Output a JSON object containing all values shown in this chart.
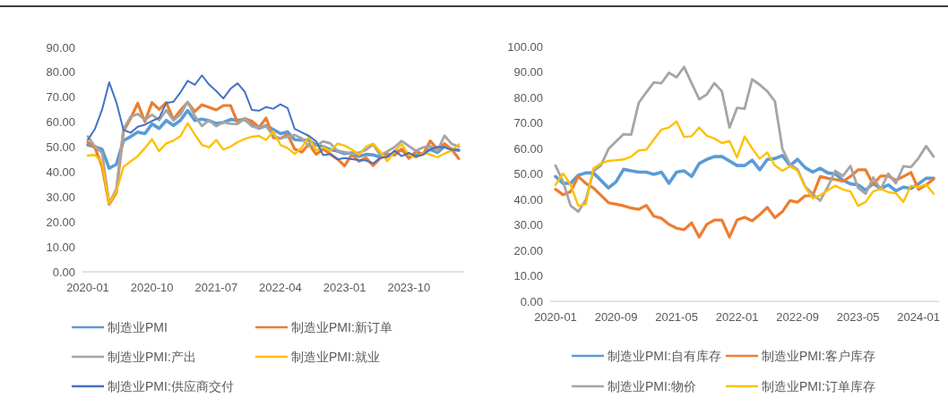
{
  "chart_data": [
    {
      "type": "line",
      "legend": "bottom",
      "grid": false,
      "categories": [
        "2020-01",
        null,
        null,
        null,
        null,
        null,
        null,
        null,
        null,
        "2020-10",
        null,
        null,
        null,
        null,
        null,
        null,
        null,
        null,
        "2021-07",
        null,
        null,
        null,
        null,
        null,
        null,
        null,
        null,
        "2022-04",
        null,
        null,
        null,
        null,
        null,
        null,
        null,
        null,
        "2023-01",
        null,
        null,
        null,
        null,
        null,
        null,
        null,
        null,
        "2023-10",
        null,
        null,
        null,
        null,
        null,
        null,
        null
      ],
      "ylim": [
        0,
        90
      ],
      "yticks": [
        {
          "value": 0,
          "label": "0.00"
        },
        {
          "value": 10,
          "label": "10.00"
        },
        {
          "value": 20,
          "label": "20.00"
        },
        {
          "value": 30,
          "label": "30.00"
        },
        {
          "value": 40,
          "label": "40.00"
        },
        {
          "value": 50,
          "label": "50.00"
        },
        {
          "value": 60,
          "label": "60.00"
        },
        {
          "value": 70,
          "label": "70.00"
        },
        {
          "value": 80,
          "label": "80.00"
        },
        {
          "value": 90,
          "label": "90.00"
        }
      ],
      "series": [
        {
          "name": "制造业PMI",
          "color": "#5b9bd5",
          "values": [
            50.9,
            50.1,
            49.1,
            41.5,
            43.1,
            52.6,
            54.2,
            56.0,
            55.4,
            59.3,
            57.5,
            60.7,
            58.7,
            60.8,
            64.7,
            60.7,
            61.2,
            60.6,
            59.5,
            59.9,
            61.1,
            60.8,
            61.1,
            58.8,
            57.6,
            58.6,
            57.1,
            55.4,
            56.1,
            53.0,
            52.8,
            52.8,
            50.9,
            50.2,
            49.0,
            48.4,
            47.4,
            47.7,
            46.3,
            47.1,
            46.9,
            46.0,
            46.4,
            47.6,
            49.0,
            46.7,
            46.7,
            47.4,
            49.1,
            47.8,
            50.3,
            49.2,
            48.7
          ]
        },
        {
          "name": "制造业PMI:新订单",
          "color": "#ed7d31",
          "values": [
            52.0,
            49.8,
            42.2,
            27.1,
            31.8,
            56.4,
            61.5,
            67.6,
            60.2,
            67.9,
            65.1,
            67.9,
            61.1,
            64.8,
            68.0,
            64.3,
            67.0,
            66.0,
            64.9,
            66.7,
            66.7,
            59.8,
            61.5,
            60.4,
            57.9,
            61.7,
            53.8,
            53.5,
            55.1,
            49.2,
            48.0,
            51.3,
            47.1,
            49.2,
            47.2,
            45.2,
            42.5,
            47.0,
            44.3,
            45.7,
            42.6,
            45.6,
            47.3,
            46.8,
            49.2,
            45.5,
            48.3,
            47.1,
            52.5,
            49.2,
            51.4,
            49.1,
            45.4
          ]
        },
        {
          "name": "制造业PMI:产出",
          "color": "#a5a5a5",
          "values": [
            54.3,
            50.3,
            47.7,
            27.5,
            33.2,
            57.3,
            62.1,
            63.3,
            61.0,
            63.0,
            60.8,
            64.8,
            60.7,
            63.2,
            68.1,
            62.5,
            58.5,
            60.8,
            58.4,
            60.0,
            59.4,
            59.3,
            61.5,
            58.3,
            57.8,
            58.5,
            54.5,
            53.6,
            54.2,
            54.9,
            53.5,
            50.4,
            50.6,
            52.3,
            51.5,
            48.5,
            48.0,
            47.3,
            47.8,
            48.9,
            51.1,
            46.7,
            48.3,
            50.0,
            52.5,
            50.4,
            48.5,
            49.9,
            50.4,
            48.4,
            54.6,
            51.3,
            50.2
          ]
        },
        {
          "name": "制造业PMI:就业",
          "color": "#ffc000",
          "values": [
            46.6,
            46.9,
            43.8,
            27.5,
            32.1,
            42.1,
            44.3,
            46.4,
            49.6,
            53.2,
            48.4,
            51.5,
            52.6,
            54.4,
            59.6,
            55.1,
            50.9,
            49.9,
            52.9,
            49.0,
            50.2,
            52.0,
            53.3,
            54.2,
            54.5,
            52.9,
            56.3,
            50.9,
            49.6,
            47.3,
            49.9,
            54.2,
            48.7,
            50.0,
            48.4,
            51.4,
            50.6,
            49.1,
            46.9,
            50.2,
            51.4,
            48.1,
            44.4,
            48.5,
            51.2,
            46.8,
            45.8,
            47.5,
            47.1,
            45.9,
            47.4,
            48.6,
            51.1
          ]
        },
        {
          "name": "制造业PMI:供应商交付",
          "color": "#4472c4",
          "values": [
            52.9,
            57.3,
            65.0,
            76.0,
            68.0,
            56.9,
            55.8,
            58.2,
            59.0,
            60.5,
            61.7,
            67.7,
            68.2,
            72.0,
            76.6,
            75.0,
            78.8,
            75.1,
            72.5,
            69.5,
            73.4,
            75.6,
            72.2,
            64.9,
            64.6,
            66.1,
            65.4,
            67.2,
            65.7,
            57.3,
            55.9,
            54.5,
            52.4,
            46.8,
            47.2,
            45.1,
            45.6,
            45.2,
            44.8,
            44.6,
            43.5,
            45.7,
            46.1,
            48.6,
            46.4,
            47.7,
            46.2,
            47.0,
            49.1,
            50.1,
            49.9,
            48.9,
            48.9
          ]
        }
      ]
    },
    {
      "type": "line",
      "legend": "bottom",
      "grid": false,
      "categories": [
        "2020-01",
        null,
        null,
        null,
        null,
        null,
        null,
        null,
        "2020-09",
        null,
        null,
        null,
        null,
        null,
        null,
        null,
        "2021-05",
        null,
        null,
        null,
        null,
        null,
        null,
        null,
        "2022-01",
        null,
        null,
        null,
        null,
        null,
        null,
        null,
        "2022-09",
        null,
        null,
        null,
        null,
        null,
        null,
        null,
        "2023-05",
        null,
        null,
        null,
        null,
        null,
        null,
        null,
        "2024-01",
        null,
        null
      ],
      "ylim": [
        0,
        100
      ],
      "yticks": [
        {
          "value": 0,
          "label": "0.00"
        },
        {
          "value": 10,
          "label": "10.00"
        },
        {
          "value": 20,
          "label": "20.00"
        },
        {
          "value": 30,
          "label": "30.00"
        },
        {
          "value": 40,
          "label": "40.00"
        },
        {
          "value": 50,
          "label": "50.00"
        },
        {
          "value": 60,
          "label": "60.00"
        },
        {
          "value": 70,
          "label": "70.00"
        },
        {
          "value": 80,
          "label": "80.00"
        },
        {
          "value": 90,
          "label": "90.00"
        },
        {
          "value": 100,
          "label": "100.00"
        }
      ],
      "series": [
        {
          "name": "制造业PMI:自有库存",
          "color": "#5b9bd5",
          "values": [
            49.0,
            46.3,
            46.3,
            49.5,
            50.4,
            50.4,
            47.5,
            44.5,
            46.9,
            51.8,
            51.2,
            50.7,
            50.7,
            49.8,
            50.7,
            46.3,
            50.7,
            51.2,
            49.0,
            54.1,
            55.7,
            56.8,
            56.8,
            55.1,
            53.3,
            53.3,
            55.4,
            51.6,
            55.7,
            56.0,
            57.2,
            53.3,
            55.7,
            52.5,
            50.7,
            52.2,
            50.4,
            50.0,
            47.5,
            46.1,
            45.7,
            43.6,
            46.3,
            44.2,
            45.7,
            43.4,
            44.8,
            44.3,
            46.1,
            48.3,
            48.3
          ]
        },
        {
          "name": "制造业PMI:客户库存",
          "color": "#ed7d31",
          "values": [
            44.0,
            41.8,
            43.1,
            49.0,
            46.3,
            44.5,
            41.6,
            38.7,
            38.1,
            37.5,
            36.6,
            36.1,
            37.7,
            33.4,
            32.6,
            30.2,
            28.7,
            28.1,
            30.8,
            25.2,
            30.2,
            31.9,
            31.9,
            25.2,
            31.9,
            33.0,
            31.6,
            34.0,
            36.9,
            32.8,
            35.2,
            39.5,
            38.9,
            41.4,
            41.4,
            49.0,
            48.3,
            47.8,
            47.1,
            49.0,
            51.6,
            51.6,
            45.9,
            49.2,
            49.2,
            47.5,
            49.0,
            50.6,
            43.9,
            45.7,
            48.0
          ]
        },
        {
          "name": "制造业PMI:物价",
          "color": "#a5a5a5",
          "values": [
            53.3,
            46.9,
            37.5,
            35.2,
            39.8,
            51.0,
            53.3,
            59.8,
            62.7,
            65.6,
            65.4,
            77.9,
            82.0,
            85.9,
            85.6,
            89.7,
            87.9,
            92.0,
            85.6,
            79.3,
            81.2,
            85.6,
            82.4,
            68.2,
            75.9,
            75.6,
            87.1,
            85.0,
            82.4,
            78.5,
            59.8,
            53.7,
            51.8,
            45.1,
            42.2,
            39.5,
            44.9,
            51.2,
            49.2,
            53.1,
            44.5,
            42.2,
            48.6,
            43.9,
            50.1,
            46.3,
            53.0,
            52.7,
            56.2,
            60.9,
            56.8
          ]
        },
        {
          "name": "制造业PMI:订单库存",
          "color": "#ffc000",
          "values": [
            45.7,
            50.2,
            45.7,
            37.5,
            38.1,
            52.2,
            54.1,
            55.1,
            55.4,
            55.7,
            56.8,
            59.2,
            59.5,
            63.5,
            67.4,
            68.2,
            70.6,
            64.5,
            64.8,
            68.2,
            65.0,
            63.9,
            62.1,
            62.9,
            56.5,
            64.7,
            60.0,
            56.0,
            58.4,
            53.3,
            51.2,
            53.0,
            51.2,
            44.9,
            40.4,
            41.6,
            43.6,
            45.4,
            43.9,
            43.1,
            37.5,
            39.0,
            43.1,
            44.2,
            42.8,
            42.4,
            39.0,
            45.4,
            44.8,
            45.9,
            42.2
          ]
        }
      ]
    }
  ]
}
